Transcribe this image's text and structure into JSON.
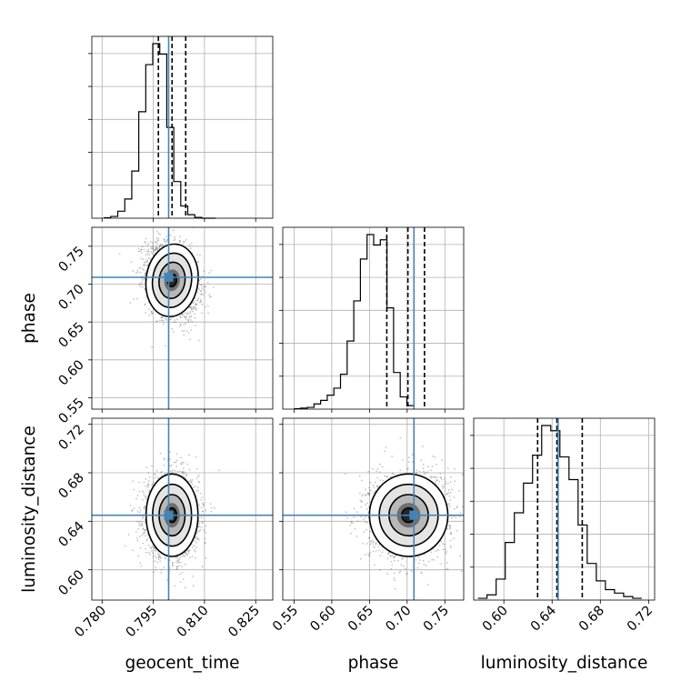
{
  "chart_data": {
    "type": "corner",
    "parameters": [
      "geocent_time",
      "phase",
      "luminosity_distance"
    ],
    "truths": [
      0.7995,
      0.709,
      0.645
    ],
    "quantiles": {
      "geocent_time": [
        0.7965,
        0.8005,
        0.8045
      ],
      "phase": [
        0.673,
        0.701,
        0.723
      ],
      "luminosity_distance": [
        0.628,
        0.644,
        0.665
      ]
    },
    "axes": {
      "geocent_time": {
        "range": [
          0.777,
          0.83
        ],
        "ticks": [
          0.78,
          0.795,
          0.81,
          0.825
        ],
        "tick_labels": [
          "0.780",
          "0.795",
          "0.810",
          "0.825"
        ]
      },
      "phase": {
        "range": [
          0.535,
          0.775
        ],
        "ticks": [
          0.55,
          0.6,
          0.65,
          0.7,
          0.75
        ],
        "tick_labels": [
          "0.55",
          "0.60",
          "0.65",
          "0.70",
          "0.75"
        ]
      },
      "luminosity_distance": {
        "range": [
          0.575,
          0.725
        ],
        "ticks": [
          0.6,
          0.64,
          0.68,
          0.72
        ],
        "tick_labels": [
          "0.60",
          "0.64",
          "0.68",
          "0.72"
        ]
      }
    },
    "histograms": {
      "geocent_time": {
        "bin_start": 0.7805,
        "bin_width": 0.00205,
        "counts": [
          0.3,
          1,
          4,
          11,
          27,
          61,
          88,
          100,
          94,
          52,
          21,
          7,
          2,
          0.5,
          0,
          0
        ]
      },
      "phase": {
        "bin_start": 0.55,
        "bin_width": 0.0088,
        "counts": [
          0.3,
          0.6,
          1,
          3,
          5,
          8,
          12,
          20,
          39,
          62,
          86,
          100,
          94,
          97,
          58,
          21,
          7,
          2
        ]
      },
      "luminosity_distance": {
        "bin_start": 0.5785,
        "bin_width": 0.00755,
        "counts": [
          1,
          3,
          12,
          33,
          50,
          67,
          83,
          100,
          97,
          82,
          69,
          43,
          21,
          11,
          6,
          4,
          2,
          1
        ]
      }
    },
    "pairs": [
      {
        "x": "geocent_time",
        "y": "phase",
        "mean": [
          0.8005,
          0.705
        ],
        "sd": [
          0.0038,
          0.024
        ],
        "rho": -0.25
      },
      {
        "x": "geocent_time",
        "y": "luminosity_distance",
        "mean": [
          0.8005,
          0.645
        ],
        "sd": [
          0.0038,
          0.017
        ],
        "rho": 0.0
      },
      {
        "x": "phase",
        "y": "luminosity_distance",
        "mean": [
          0.702,
          0.645
        ],
        "sd": [
          0.026,
          0.017
        ],
        "rho": 0.05
      }
    ],
    "truth_color": "#4682b4",
    "grid": true
  }
}
